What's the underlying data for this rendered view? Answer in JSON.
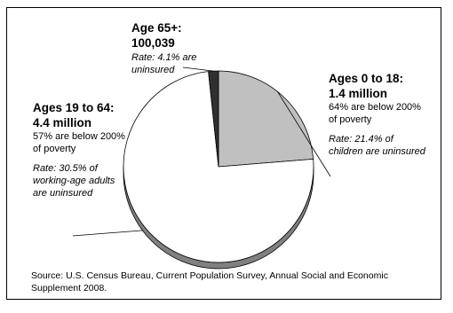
{
  "chart_data": {
    "type": "pie",
    "style": "3d",
    "slices": [
      {
        "key": "age0_18",
        "label": "Ages 0 to 18:",
        "value_label": "1.4 million",
        "value": 1400000,
        "note": "64% are below 200% of poverty",
        "rate": "Rate: 21.4% of children are uninsured",
        "color": "#c0c0c0",
        "side_color": "#8a8a8a"
      },
      {
        "key": "age19_64",
        "label": "Ages 19 to 64:",
        "value_label": "4.4 million",
        "value": 4400000,
        "note": "57% are below 200% of poverty",
        "rate": "Rate: 30.5% of working-age adults are uninsured",
        "color": "#ffffff",
        "side_color": "#808080"
      },
      {
        "key": "age65",
        "label": "Age 65+:",
        "value_label": "100,039",
        "value": 100039,
        "note": "",
        "rate": "Rate: 4.1% are uninsured",
        "color": "#303030",
        "side_color": "#111111"
      }
    ],
    "source": "Source: U.S. Census Bureau, Current Population Survey, Annual Social and Economic Supplement 2008."
  }
}
